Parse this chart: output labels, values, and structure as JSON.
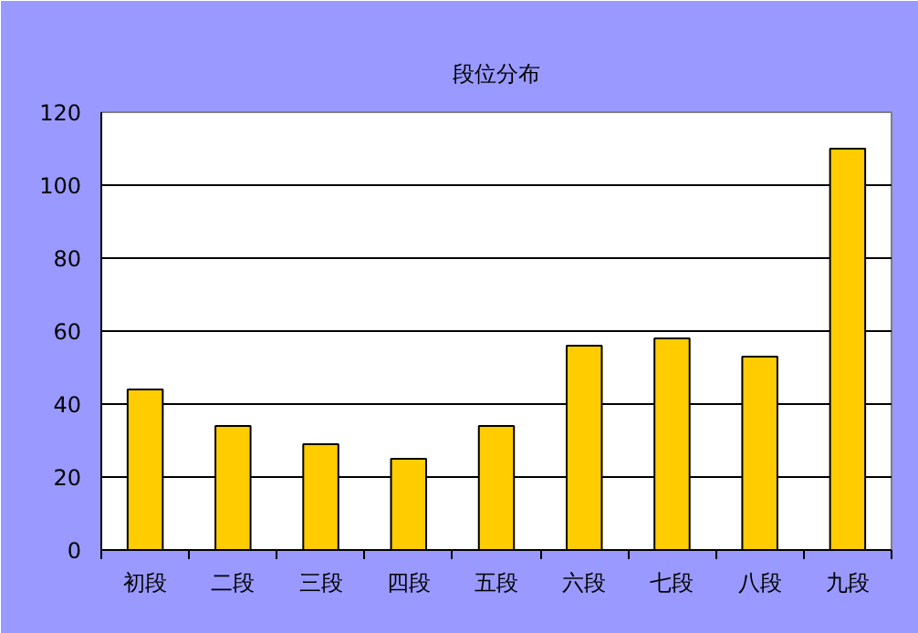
{
  "chart_data": {
    "type": "bar",
    "title": "段位分布",
    "categories": [
      "初段",
      "二段",
      "三段",
      "四段",
      "五段",
      "六段",
      "七段",
      "八段",
      "九段"
    ],
    "values": [
      44,
      34,
      29,
      25,
      34,
      56,
      58,
      53,
      110
    ],
    "color": "#ffcc00",
    "ylim": [
      0,
      120
    ],
    "yticks": [
      0,
      20,
      40,
      60,
      80,
      100,
      120
    ],
    "grid": "y"
  }
}
